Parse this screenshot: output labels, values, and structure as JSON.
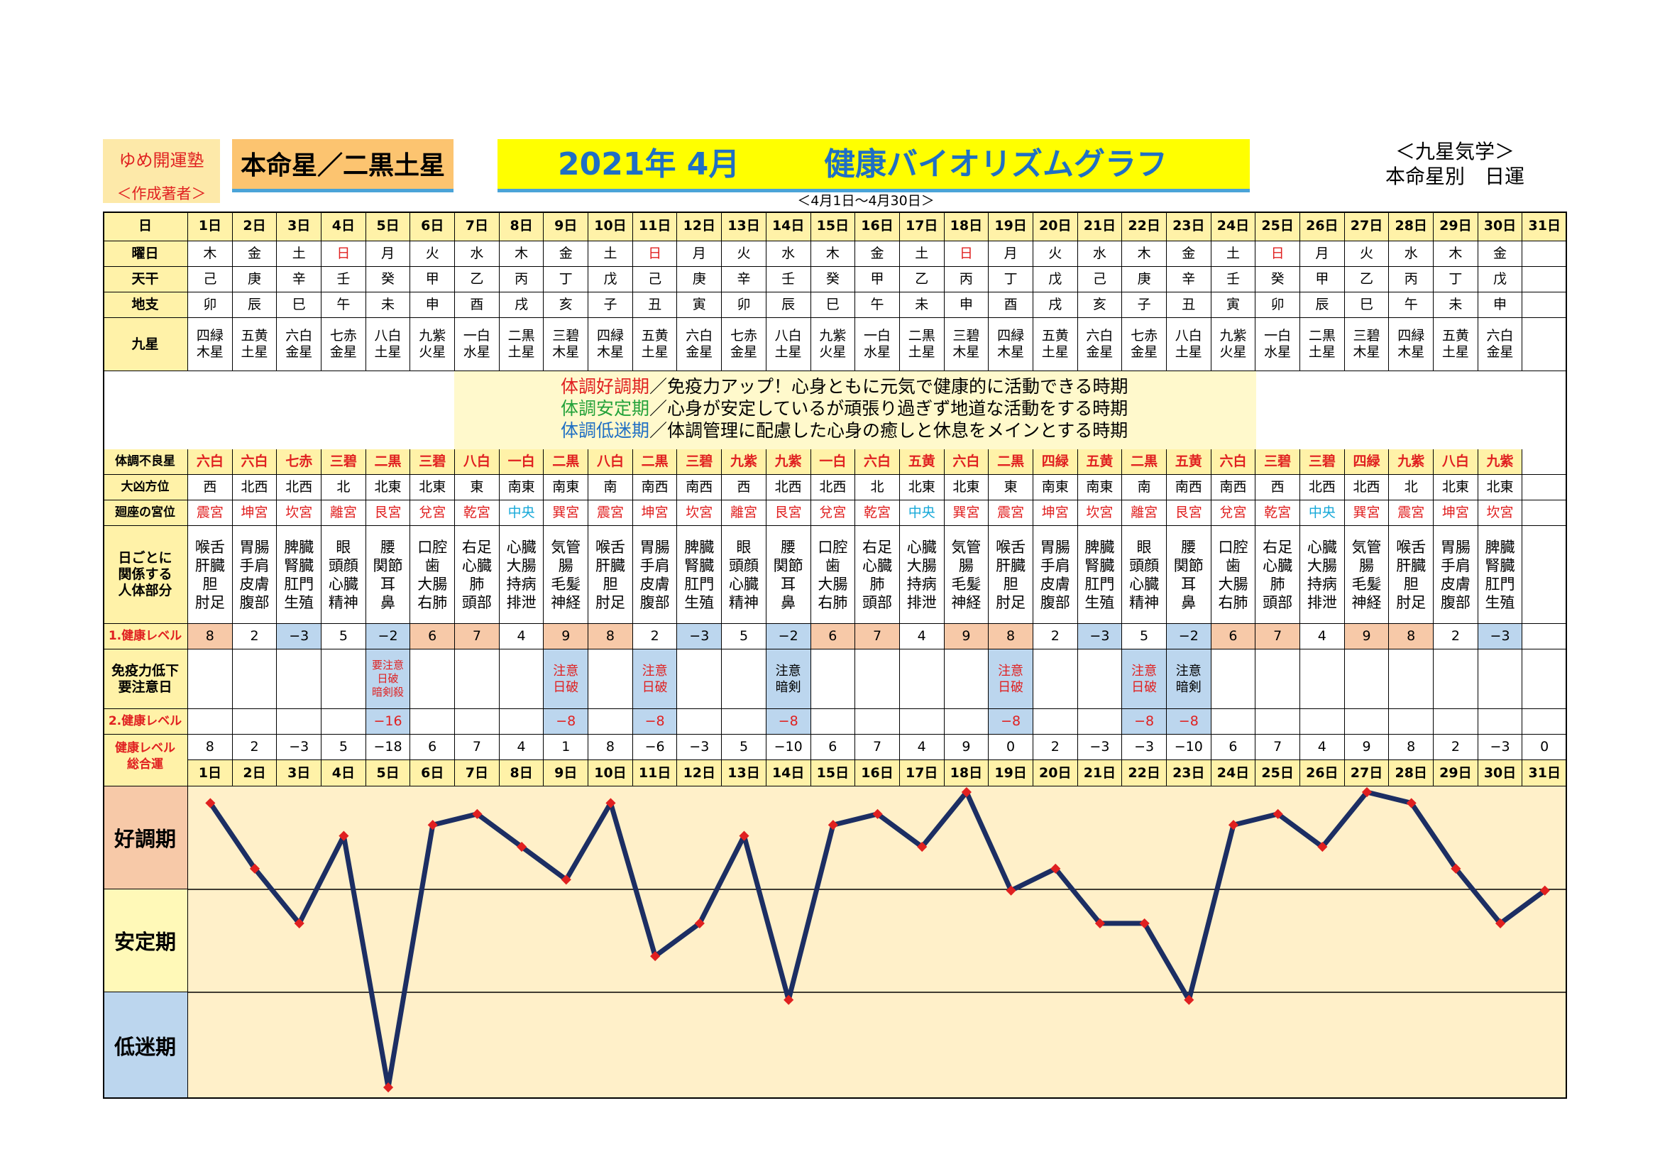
{
  "header": {
    "author_name": "ゆめ開運塾",
    "author_sub": "＜作成著者＞",
    "honmei": "本命星／二黒土星",
    "title_year_month": "2021年 4月",
    "title_name": "健康バイオリズムグラフ",
    "top_right_1": "＜九星気学＞",
    "top_right_2": "本命星別　日運",
    "range": "＜4月1日～4月30日＞"
  },
  "row_labels": {
    "day": "日",
    "weekday": "曜日",
    "tenkan": "天干",
    "chishi": "地支",
    "kyusei": "九星",
    "bad_star": "体調不良星",
    "bad_dir": "大凶方位",
    "palace": "廻座の宮位",
    "body1": "日ごとに",
    "body2": "関係する",
    "body3": "人体部分",
    "level1": "1.健康レベル",
    "caution1": "免疫力低下",
    "caution2": "要注意日",
    "level2": "2.健康レベル",
    "total1": "健康レベル",
    "total2": "総合運"
  },
  "legend": {
    "line1_head": "体調好調期",
    "line1_body": "／免疫力アップ！心身ともに元気で健康的に活動できる時期",
    "line2_head": "体調安定期",
    "line2_body": "／心身が安定しているが頑張り過ぎず地道な活動をする時期",
    "line3_head": "体調低迷期",
    "line3_body": "／体調管理に配慮した心身の癒しと休息をメインとする時期"
  },
  "zones": [
    "好調期",
    "安定期",
    "低迷期"
  ],
  "colors": {
    "header_yellow": "#fff2a8",
    "red_text": "#e02020",
    "cyan_text": "#16a8d8",
    "high": "#f7c9a8",
    "low": "#bcd6ee",
    "plot_bg": "#fff0c9",
    "line": "#1c2e63",
    "marker": "#e02020"
  },
  "days": [
    "1日",
    "2日",
    "3日",
    "4日",
    "5日",
    "6日",
    "7日",
    "8日",
    "9日",
    "10日",
    "11日",
    "12日",
    "13日",
    "14日",
    "15日",
    "16日",
    "17日",
    "18日",
    "19日",
    "20日",
    "21日",
    "22日",
    "23日",
    "24日",
    "25日",
    "26日",
    "27日",
    "28日",
    "29日",
    "30日",
    "31日"
  ],
  "weekday": [
    "木",
    "金",
    "土",
    "日",
    "月",
    "火",
    "水",
    "木",
    "金",
    "土",
    "日",
    "月",
    "火",
    "水",
    "木",
    "金",
    "土",
    "日",
    "月",
    "火",
    "水",
    "木",
    "金",
    "土",
    "日",
    "月",
    "火",
    "水",
    "木",
    "金",
    ""
  ],
  "tenkan": [
    "己",
    "庚",
    "辛",
    "壬",
    "癸",
    "甲",
    "乙",
    "丙",
    "丁",
    "戊",
    "己",
    "庚",
    "辛",
    "壬",
    "癸",
    "甲",
    "乙",
    "丙",
    "丁",
    "戊",
    "己",
    "庚",
    "辛",
    "壬",
    "癸",
    "甲",
    "乙",
    "丙",
    "丁",
    "戊",
    ""
  ],
  "chishi": [
    "卯",
    "辰",
    "巳",
    "午",
    "未",
    "申",
    "酉",
    "戌",
    "亥",
    "子",
    "丑",
    "寅",
    "卯",
    "辰",
    "巳",
    "午",
    "未",
    "申",
    "酉",
    "戌",
    "亥",
    "子",
    "丑",
    "寅",
    "卯",
    "辰",
    "巳",
    "午",
    "未",
    "申",
    ""
  ],
  "kyusei": [
    [
      "四緑",
      "木星"
    ],
    [
      "五黄",
      "土星"
    ],
    [
      "六白",
      "金星"
    ],
    [
      "七赤",
      "金星"
    ],
    [
      "八白",
      "土星"
    ],
    [
      "九紫",
      "火星"
    ],
    [
      "一白",
      "水星"
    ],
    [
      "二黒",
      "土星"
    ],
    [
      "三碧",
      "木星"
    ],
    [
      "四緑",
      "木星"
    ],
    [
      "五黄",
      "土星"
    ],
    [
      "六白",
      "金星"
    ],
    [
      "七赤",
      "金星"
    ],
    [
      "八白",
      "土星"
    ],
    [
      "九紫",
      "火星"
    ],
    [
      "一白",
      "水星"
    ],
    [
      "二黒",
      "土星"
    ],
    [
      "三碧",
      "木星"
    ],
    [
      "四緑",
      "木星"
    ],
    [
      "五黄",
      "土星"
    ],
    [
      "六白",
      "金星"
    ],
    [
      "七赤",
      "金星"
    ],
    [
      "八白",
      "土星"
    ],
    [
      "九紫",
      "火星"
    ],
    [
      "一白",
      "水星"
    ],
    [
      "二黒",
      "土星"
    ],
    [
      "三碧",
      "木星"
    ],
    [
      "四緑",
      "木星"
    ],
    [
      "五黄",
      "土星"
    ],
    [
      "六白",
      "金星"
    ],
    [
      "",
      ""
    ]
  ],
  "bad_star": [
    "六白",
    "六白",
    "七赤",
    "三碧",
    "二黒",
    "三碧",
    "八白",
    "一白",
    "二黒",
    "八白",
    "二黒",
    "三碧",
    "九紫",
    "九紫",
    "一白",
    "六白",
    "五黄",
    "六白",
    "二黒",
    "四緑",
    "五黄",
    "二黒",
    "五黄",
    "六白",
    "三碧",
    "三碧",
    "四緑",
    "九紫",
    "八白",
    "九紫",
    ""
  ],
  "bad_dir": [
    "西",
    "北西",
    "北西",
    "北",
    "北東",
    "北東",
    "東",
    "南東",
    "南東",
    "南",
    "南西",
    "南西",
    "西",
    "北西",
    "北西",
    "北",
    "北東",
    "北東",
    "東",
    "南東",
    "南東",
    "南",
    "南西",
    "南西",
    "西",
    "北西",
    "北西",
    "北",
    "北東",
    "北東",
    ""
  ],
  "palace": [
    "震宮",
    "坤宮",
    "坎宮",
    "離宮",
    "艮宮",
    "兌宮",
    "乾宮",
    "中央",
    "巽宮",
    "震宮",
    "坤宮",
    "坎宮",
    "離宮",
    "艮宮",
    "兌宮",
    "乾宮",
    "中央",
    "巽宮",
    "震宮",
    "坤宮",
    "坎宮",
    "離宮",
    "艮宮",
    "兌宮",
    "乾宮",
    "中央",
    "巽宮",
    "震宮",
    "坤宮",
    "坎宮",
    ""
  ],
  "body": [
    [
      "喉舌",
      "肝臓",
      "胆",
      "肘足"
    ],
    [
      "胃腸",
      "手肩",
      "皮膚",
      "腹部"
    ],
    [
      "脾臓",
      "腎臓",
      "肛門",
      "生殖"
    ],
    [
      "眼",
      "頭顔",
      "心臓",
      "精神"
    ],
    [
      "腰",
      "関節",
      "耳",
      "鼻"
    ],
    [
      "口腔",
      "歯",
      "大腸",
      "右肺"
    ],
    [
      "右足",
      "心臓",
      "肺",
      "頭部"
    ],
    [
      "心臓",
      "大腸",
      "持病",
      "排泄"
    ],
    [
      "気管",
      "腸",
      "毛髪",
      "神経"
    ],
    [
      "喉舌",
      "肝臓",
      "胆",
      "肘足"
    ],
    [
      "胃腸",
      "手肩",
      "皮膚",
      "腹部"
    ],
    [
      "脾臓",
      "腎臓",
      "肛門",
      "生殖"
    ],
    [
      "眼",
      "頭顔",
      "心臓",
      "精神"
    ],
    [
      "腰",
      "関節",
      "耳",
      "鼻"
    ],
    [
      "口腔",
      "歯",
      "大腸",
      "右肺"
    ],
    [
      "右足",
      "心臓",
      "肺",
      "頭部"
    ],
    [
      "心臓",
      "大腸",
      "持病",
      "排泄"
    ],
    [
      "気管",
      "腸",
      "毛髪",
      "神経"
    ],
    [
      "喉舌",
      "肝臓",
      "胆",
      "肘足"
    ],
    [
      "胃腸",
      "手肩",
      "皮膚",
      "腹部"
    ],
    [
      "脾臓",
      "腎臓",
      "肛門",
      "生殖"
    ],
    [
      "眼",
      "頭顔",
      "心臓",
      "精神"
    ],
    [
      "腰",
      "関節",
      "耳",
      "鼻"
    ],
    [
      "口腔",
      "歯",
      "大腸",
      "右肺"
    ],
    [
      "右足",
      "心臓",
      "肺",
      "頭部"
    ],
    [
      "心臓",
      "大腸",
      "持病",
      "排泄"
    ],
    [
      "気管",
      "腸",
      "毛髪",
      "神経"
    ],
    [
      "喉舌",
      "肝臓",
      "胆",
      "肘足"
    ],
    [
      "胃腸",
      "手肩",
      "皮膚",
      "腹部"
    ],
    [
      "脾臓",
      "腎臓",
      "肛門",
      "生殖"
    ],
    [
      "",
      "",
      "",
      ""
    ]
  ],
  "level1": [
    "8",
    "2",
    "−3",
    "5",
    "−2",
    "6",
    "7",
    "4",
    "9",
    "8",
    "2",
    "−3",
    "5",
    "−2",
    "6",
    "7",
    "4",
    "9",
    "8",
    "2",
    "−3",
    "5",
    "−2",
    "6",
    "7",
    "4",
    "9",
    "8",
    "2",
    "−3",
    ""
  ],
  "caution": [
    [],
    [],
    [],
    [],
    [
      "要注意",
      "日破",
      "暗剣殺"
    ],
    [],
    [],
    [],
    [
      "注意",
      "日破"
    ],
    [],
    [
      "注意",
      "日破"
    ],
    [],
    [],
    [
      "注意",
      "暗剣"
    ],
    [],
    [],
    [],
    [],
    [
      "注意",
      "日破"
    ],
    [],
    [],
    [
      "注意",
      "日破"
    ],
    [
      "注意",
      "暗剣"
    ],
    [],
    [],
    [],
    [],
    [],
    [],
    [],
    []
  ],
  "level2": [
    "",
    "",
    "",
    "",
    "−16",
    "",
    "",
    "",
    "−8",
    "",
    "−8",
    "",
    "",
    "−8",
    "",
    "",
    "",
    "",
    "−8",
    "",
    "",
    "−8",
    "−8",
    "",
    "",
    "",
    "",
    "",
    "",
    "",
    ""
  ],
  "total": [
    "8",
    "2",
    "−3",
    "5",
    "−18",
    "6",
    "7",
    "4",
    "1",
    "8",
    "−6",
    "−3",
    "5",
    "−10",
    "6",
    "7",
    "4",
    "9",
    "0",
    "2",
    "−3",
    "−3",
    "−10",
    "6",
    "7",
    "4",
    "9",
    "8",
    "2",
    "−3",
    "0"
  ],
  "chart_data": {
    "type": "line",
    "title": "健康バイオリズムグラフ",
    "categories": [
      "1日",
      "2日",
      "3日",
      "4日",
      "5日",
      "6日",
      "7日",
      "8日",
      "9日",
      "10日",
      "11日",
      "12日",
      "13日",
      "14日",
      "15日",
      "16日",
      "17日",
      "18日",
      "19日",
      "20日",
      "21日",
      "22日",
      "23日",
      "24日",
      "25日",
      "26日",
      "27日",
      "28日",
      "29日",
      "30日",
      "31日"
    ],
    "values": [
      8,
      2,
      -3,
      5,
      -18,
      6,
      7,
      4,
      1,
      8,
      -6,
      -3,
      5,
      -10,
      6,
      7,
      4,
      9,
      0,
      2,
      -3,
      -3,
      -10,
      6,
      7,
      4,
      9,
      8,
      2,
      -3,
      0
    ],
    "ylim": [
      -18,
      9
    ],
    "zones": [
      "好調期",
      "安定期",
      "低迷期"
    ],
    "grid": false
  }
}
